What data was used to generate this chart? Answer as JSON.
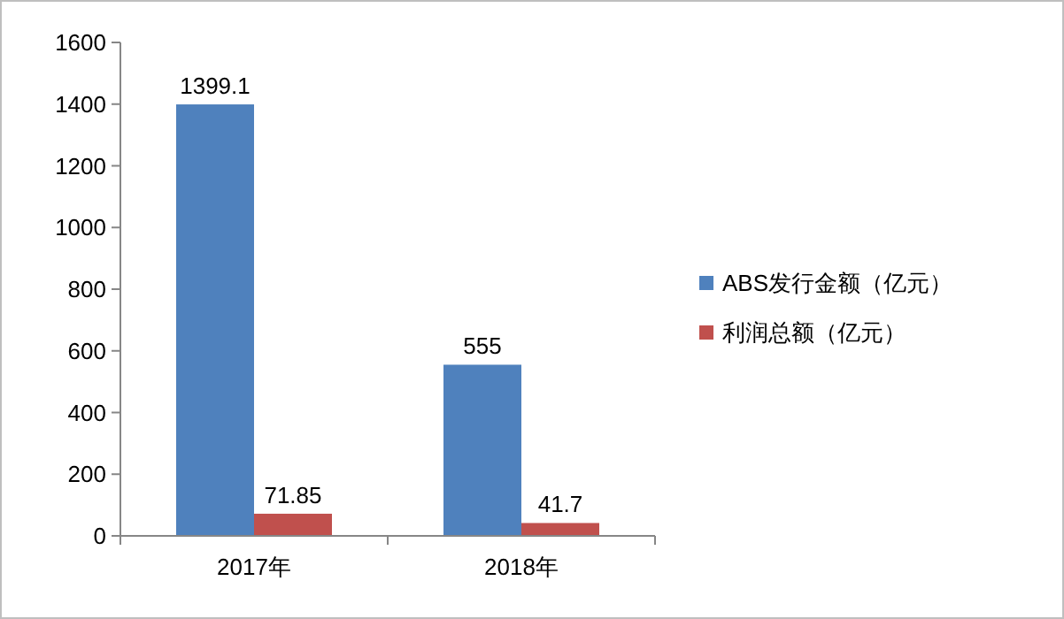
{
  "chart_data": {
    "type": "bar",
    "categories": [
      "2017年",
      "2018年"
    ],
    "series": [
      {
        "name": "ABS发行金额（亿元）",
        "color": "#4f81bd",
        "values": [
          1399.1,
          555
        ]
      },
      {
        "name": "利润总额（亿元）",
        "color": "#c0504d",
        "values": [
          71.85,
          41.7
        ]
      }
    ],
    "ylim": [
      0,
      1600
    ],
    "yticks": [
      0,
      200,
      400,
      600,
      800,
      1000,
      1200,
      1400,
      1600
    ],
    "data_labels": true,
    "legend": "right",
    "grid": false
  }
}
